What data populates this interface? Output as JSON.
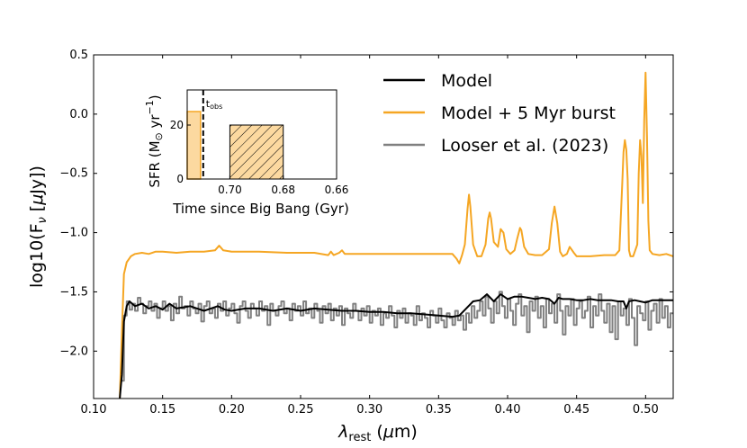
{
  "chart_data": {
    "type": "line",
    "xlabel": "λrest (μm)",
    "ylabel": "log10(Fν [μJy])",
    "xlim": [
      0.1,
      0.52
    ],
    "ylim": [
      -2.4,
      0.5
    ],
    "xticks": [
      "0.10",
      "0.15",
      "0.20",
      "0.25",
      "0.30",
      "0.35",
      "0.40",
      "0.45",
      "0.50"
    ],
    "yticks": [
      "0.5",
      "0.0",
      "−0.5",
      "−1.0",
      "−1.5",
      "−2.0"
    ],
    "legend_position": "top-right",
    "colors": {
      "model": "#000000",
      "burst": "#f5a623",
      "looser": "#808080",
      "burst_fill": "#fcd9a0"
    },
    "series": [
      {
        "name": "Model",
        "x": [
          0.119,
          0.1205,
          0.122,
          0.124,
          0.126,
          0.128,
          0.13,
          0.135,
          0.14,
          0.145,
          0.15,
          0.155,
          0.16,
          0.165,
          0.17,
          0.175,
          0.18,
          0.185,
          0.19,
          0.195,
          0.2,
          0.21,
          0.22,
          0.23,
          0.24,
          0.25,
          0.26,
          0.27,
          0.28,
          0.29,
          0.3,
          0.31,
          0.32,
          0.33,
          0.34,
          0.35,
          0.36,
          0.365,
          0.37,
          0.375,
          0.38,
          0.385,
          0.39,
          0.395,
          0.4,
          0.405,
          0.41,
          0.415,
          0.42,
          0.425,
          0.43,
          0.434,
          0.437,
          0.44,
          0.445,
          0.45,
          0.455,
          0.46,
          0.465,
          0.47,
          0.475,
          0.48,
          0.484,
          0.486,
          0.488,
          0.492,
          0.496,
          0.5,
          0.505,
          0.51,
          0.515,
          0.52
        ],
        "y": [
          -2.4,
          -2.2,
          -1.75,
          -1.62,
          -1.58,
          -1.6,
          -1.62,
          -1.6,
          -1.64,
          -1.62,
          -1.65,
          -1.6,
          -1.64,
          -1.63,
          -1.62,
          -1.64,
          -1.66,
          -1.64,
          -1.62,
          -1.65,
          -1.66,
          -1.64,
          -1.64,
          -1.66,
          -1.64,
          -1.66,
          -1.64,
          -1.65,
          -1.66,
          -1.66,
          -1.67,
          -1.67,
          -1.68,
          -1.68,
          -1.69,
          -1.7,
          -1.71,
          -1.7,
          -1.64,
          -1.58,
          -1.57,
          -1.52,
          -1.58,
          -1.52,
          -1.56,
          -1.54,
          -1.54,
          -1.55,
          -1.56,
          -1.55,
          -1.56,
          -1.6,
          -1.55,
          -1.56,
          -1.56,
          -1.57,
          -1.57,
          -1.56,
          -1.57,
          -1.57,
          -1.57,
          -1.58,
          -1.58,
          -1.64,
          -1.58,
          -1.57,
          -1.58,
          -1.59,
          -1.57,
          -1.57,
          -1.57,
          -1.57
        ]
      },
      {
        "name": "Model + 5 Myr burst",
        "x": [
          0.119,
          0.1205,
          0.122,
          0.124,
          0.127,
          0.13,
          0.135,
          0.14,
          0.145,
          0.15,
          0.16,
          0.17,
          0.18,
          0.188,
          0.191,
          0.194,
          0.2,
          0.22,
          0.24,
          0.26,
          0.27,
          0.272,
          0.274,
          0.278,
          0.28,
          0.282,
          0.3,
          0.32,
          0.34,
          0.355,
          0.36,
          0.363,
          0.365,
          0.367,
          0.369,
          0.371,
          0.372,
          0.373,
          0.375,
          0.378,
          0.381,
          0.384,
          0.386,
          0.387,
          0.388,
          0.39,
          0.393,
          0.395,
          0.397,
          0.399,
          0.402,
          0.405,
          0.407,
          0.409,
          0.41,
          0.412,
          0.415,
          0.42,
          0.425,
          0.43,
          0.432,
          0.434,
          0.436,
          0.438,
          0.44,
          0.443,
          0.445,
          0.448,
          0.45,
          0.46,
          0.47,
          0.478,
          0.481,
          0.483,
          0.484,
          0.485,
          0.486,
          0.487,
          0.488,
          0.489,
          0.491,
          0.494,
          0.495,
          0.496,
          0.497,
          0.498,
          0.499,
          0.5,
          0.501,
          0.502,
          0.503,
          0.505,
          0.51,
          0.515,
          0.52
        ],
        "y": [
          -2.4,
          -1.85,
          -1.35,
          -1.25,
          -1.2,
          -1.18,
          -1.17,
          -1.18,
          -1.16,
          -1.16,
          -1.17,
          -1.16,
          -1.16,
          -1.15,
          -1.11,
          -1.15,
          -1.16,
          -1.16,
          -1.17,
          -1.17,
          -1.19,
          -1.16,
          -1.19,
          -1.17,
          -1.15,
          -1.18,
          -1.18,
          -1.18,
          -1.18,
          -1.18,
          -1.18,
          -1.22,
          -1.26,
          -1.19,
          -1.1,
          -0.8,
          -0.68,
          -0.78,
          -1.1,
          -1.2,
          -1.2,
          -1.1,
          -0.88,
          -0.83,
          -0.88,
          -1.08,
          -1.12,
          -0.97,
          -1.0,
          -1.14,
          -1.18,
          -1.15,
          -1.05,
          -0.96,
          -0.98,
          -1.12,
          -1.18,
          -1.19,
          -1.19,
          -1.14,
          -0.92,
          -0.78,
          -0.92,
          -1.16,
          -1.2,
          -1.18,
          -1.12,
          -1.17,
          -1.2,
          -1.2,
          -1.19,
          -1.19,
          -1.15,
          -0.6,
          -0.32,
          -0.22,
          -0.3,
          -0.55,
          -1.15,
          -1.2,
          -1.2,
          -1.1,
          -0.5,
          -0.22,
          -0.35,
          -0.75,
          -0.05,
          0.35,
          -0.2,
          -0.9,
          -1.15,
          -1.18,
          -1.19,
          -1.18,
          -1.2
        ]
      },
      {
        "name": "Looser et al. (2023)",
        "x": [
          0.121,
          0.123,
          0.125,
          0.127,
          0.129,
          0.131,
          0.133,
          0.135,
          0.137,
          0.139,
          0.141,
          0.143,
          0.145,
          0.147,
          0.149,
          0.151,
          0.153,
          0.155,
          0.157,
          0.159,
          0.161,
          0.163,
          0.165,
          0.167,
          0.169,
          0.171,
          0.173,
          0.175,
          0.177,
          0.179,
          0.181,
          0.183,
          0.185,
          0.187,
          0.189,
          0.191,
          0.193,
          0.195,
          0.197,
          0.199,
          0.201,
          0.203,
          0.205,
          0.207,
          0.209,
          0.211,
          0.213,
          0.215,
          0.217,
          0.219,
          0.221,
          0.223,
          0.225,
          0.227,
          0.229,
          0.231,
          0.233,
          0.235,
          0.237,
          0.239,
          0.241,
          0.243,
          0.245,
          0.247,
          0.249,
          0.251,
          0.253,
          0.255,
          0.257,
          0.259,
          0.261,
          0.263,
          0.265,
          0.267,
          0.269,
          0.271,
          0.273,
          0.275,
          0.277,
          0.279,
          0.281,
          0.283,
          0.285,
          0.287,
          0.289,
          0.291,
          0.293,
          0.295,
          0.297,
          0.299,
          0.301,
          0.303,
          0.305,
          0.307,
          0.309,
          0.311,
          0.313,
          0.315,
          0.317,
          0.319,
          0.321,
          0.323,
          0.325,
          0.327,
          0.329,
          0.331,
          0.333,
          0.335,
          0.337,
          0.339,
          0.341,
          0.343,
          0.345,
          0.347,
          0.349,
          0.351,
          0.353,
          0.355,
          0.357,
          0.359,
          0.361,
          0.363,
          0.365,
          0.367,
          0.369,
          0.371,
          0.373,
          0.375,
          0.377,
          0.379,
          0.381,
          0.383,
          0.385,
          0.387,
          0.389,
          0.391,
          0.393,
          0.395,
          0.397,
          0.399,
          0.401,
          0.403,
          0.405,
          0.407,
          0.409,
          0.411,
          0.413,
          0.415,
          0.417,
          0.419,
          0.421,
          0.423,
          0.425,
          0.427,
          0.429,
          0.431,
          0.433,
          0.435,
          0.437,
          0.439,
          0.441,
          0.443,
          0.445,
          0.447,
          0.449,
          0.451,
          0.453,
          0.455,
          0.457,
          0.459,
          0.461,
          0.463,
          0.465,
          0.467,
          0.469,
          0.471,
          0.473,
          0.475,
          0.477,
          0.479,
          0.481,
          0.483,
          0.485,
          0.487,
          0.489,
          0.491,
          0.493,
          0.495,
          0.497,
          0.499,
          0.501,
          0.503,
          0.505,
          0.507,
          0.509,
          0.511,
          0.513,
          0.515,
          0.517,
          0.519
        ],
        "y": [
          -2.25,
          -1.7,
          -1.58,
          -1.65,
          -1.6,
          -1.66,
          -1.55,
          -1.6,
          -1.68,
          -1.62,
          -1.58,
          -1.66,
          -1.6,
          -1.72,
          -1.64,
          -1.58,
          -1.66,
          -1.62,
          -1.74,
          -1.6,
          -1.68,
          -1.54,
          -1.64,
          -1.62,
          -1.7,
          -1.58,
          -1.64,
          -1.68,
          -1.6,
          -1.75,
          -1.62,
          -1.58,
          -1.68,
          -1.64,
          -1.72,
          -1.6,
          -1.66,
          -1.58,
          -1.7,
          -1.64,
          -1.6,
          -1.68,
          -1.76,
          -1.62,
          -1.58,
          -1.66,
          -1.72,
          -1.6,
          -1.64,
          -1.7,
          -1.58,
          -1.66,
          -1.62,
          -1.78,
          -1.6,
          -1.66,
          -1.7,
          -1.62,
          -1.58,
          -1.68,
          -1.64,
          -1.74,
          -1.6,
          -1.66,
          -1.62,
          -1.7,
          -1.58,
          -1.68,
          -1.64,
          -1.72,
          -1.6,
          -1.66,
          -1.76,
          -1.62,
          -1.68,
          -1.6,
          -1.74,
          -1.64,
          -1.7,
          -1.62,
          -1.78,
          -1.64,
          -1.68,
          -1.72,
          -1.6,
          -1.66,
          -1.74,
          -1.64,
          -1.7,
          -1.62,
          -1.76,
          -1.66,
          -1.7,
          -1.64,
          -1.78,
          -1.68,
          -1.72,
          -1.62,
          -1.7,
          -1.8,
          -1.66,
          -1.72,
          -1.64,
          -1.76,
          -1.68,
          -1.7,
          -1.78,
          -1.62,
          -1.74,
          -1.68,
          -1.72,
          -1.8,
          -1.66,
          -1.7,
          -1.76,
          -1.64,
          -1.74,
          -1.8,
          -1.68,
          -1.72,
          -1.78,
          -1.66,
          -1.74,
          -1.7,
          -1.82,
          -1.68,
          -1.76,
          -1.62,
          -1.72,
          -1.66,
          -1.58,
          -1.7,
          -1.54,
          -1.64,
          -1.76,
          -1.58,
          -1.68,
          -1.5,
          -1.62,
          -1.72,
          -1.56,
          -1.66,
          -1.78,
          -1.6,
          -1.52,
          -1.7,
          -1.62,
          -1.84,
          -1.58,
          -1.66,
          -1.54,
          -1.72,
          -1.62,
          -1.8,
          -1.56,
          -1.68,
          -1.6,
          -1.76,
          -1.52,
          -1.66,
          -1.86,
          -1.62,
          -1.7,
          -1.56,
          -1.78,
          -1.64,
          -1.58,
          -1.72,
          -1.66,
          -1.54,
          -1.8,
          -1.62,
          -1.7,
          -1.52,
          -1.66,
          -1.76,
          -1.6,
          -1.84,
          -1.62,
          -1.9,
          -1.58,
          -1.7,
          -1.64,
          -1.78,
          -1.56,
          -1.72,
          -1.95,
          -1.62,
          -1.68,
          -1.74,
          -1.58,
          -1.82,
          -1.66,
          -1.6,
          -1.76,
          -1.56,
          -1.72,
          -1.62,
          -1.8,
          -1.68
        ]
      }
    ],
    "inset": {
      "type": "bar",
      "xlabel": "Time since Big Bang (Gyr)",
      "ylabel": "SFR (M⊙ yr⁻¹)",
      "xlim": [
        0.716,
        0.66
      ],
      "ylim": [
        0,
        33
      ],
      "xticks": [
        "0.70",
        "0.68",
        "0.66"
      ],
      "yticks": [
        "0",
        "20"
      ],
      "bars": [
        {
          "x_start": 0.716,
          "x_end": 0.711,
          "value": 25,
          "fill": "solid"
        },
        {
          "x_start": 0.7,
          "x_end": 0.68,
          "value": 20,
          "fill": "hatched"
        }
      ],
      "t_obs": 0.71,
      "t_obs_label_main": "t",
      "t_obs_label_sub": "obs"
    }
  }
}
